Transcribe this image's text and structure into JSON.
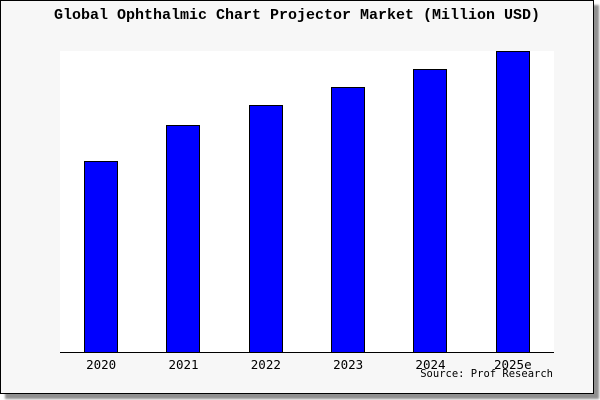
{
  "chart_data": {
    "type": "bar",
    "title": "Global Ophthalmic Chart Projector Market (Million USD)",
    "categories": [
      "2020",
      "2021",
      "2022",
      "2023",
      "2024",
      "2025e"
    ],
    "values_relative_pct_of_plot_height": [
      63.1,
      75.1,
      81.7,
      87.7,
      93.7,
      99.7
    ],
    "y_axis": "unlabeled",
    "grid": false,
    "legend": "none",
    "source": "Source: Prof Research",
    "colors": {
      "bar_fill": "#0000ff",
      "bar_border": "#000000",
      "figure_bg": "#f7f7f7",
      "plot_bg": "#ffffff",
      "axis_line": "#000000",
      "text": "#000000"
    }
  }
}
